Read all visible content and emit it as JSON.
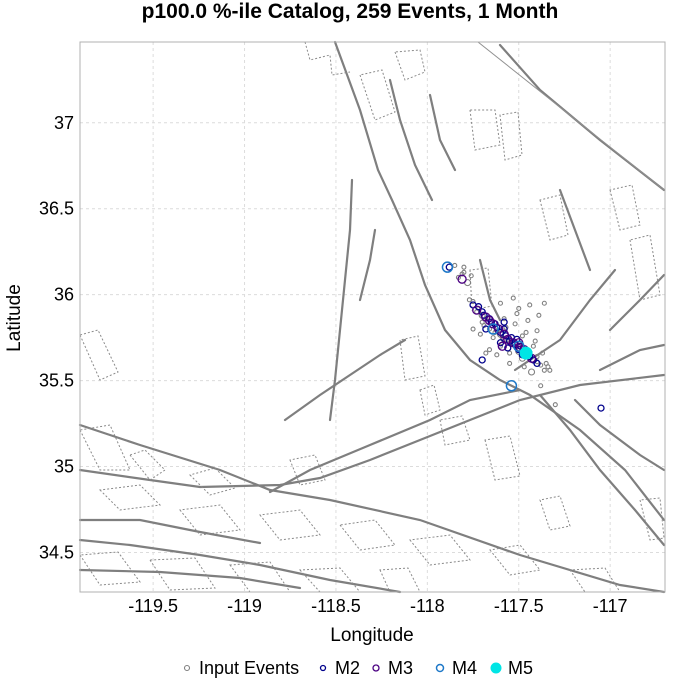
{
  "chart_data": {
    "type": "scatter",
    "title": "p100.0 %-ile Catalog, 259 Events, 1 Month",
    "xlabel": "Longitude",
    "ylabel": "Latitude",
    "xlim": [
      -119.9,
      -116.7
    ],
    "ylim": [
      34.27,
      37.47
    ],
    "xticks": [
      -119.5,
      -119,
      -118.5,
      -118,
      -117.5,
      -117
    ],
    "xtick_labels": [
      "-119.5",
      "-119",
      "-118.5",
      "-118",
      "-117.5",
      "-117"
    ],
    "yticks": [
      34.5,
      35,
      35.5,
      36,
      36.5,
      37
    ],
    "ytick_labels": [
      "34.5",
      "35",
      "35.5",
      "36",
      "36.5",
      "37"
    ],
    "grid": true,
    "legend_position": "bottom",
    "colors": {
      "input_events": "#808080",
      "m2": "#00008b",
      "m3": "#4b0082",
      "m4": "#1e78c8",
      "m5": "#00e5e5",
      "fault": "#808080",
      "grid": "#dcdcdc"
    },
    "series": [
      {
        "name": "Input Events",
        "x": [
          -117.83,
          -117.8,
          -117.78,
          -117.75,
          -117.72,
          -117.7,
          -117.68,
          -117.65,
          -117.62,
          -117.6,
          -117.58,
          -117.55,
          -117.52,
          -117.5,
          -117.48,
          -117.45,
          -117.42,
          -117.4,
          -117.38,
          -117.36,
          -117.7,
          -117.66,
          -117.63,
          -117.59,
          -117.56,
          -117.53,
          -117.5,
          -117.47,
          -117.44,
          -117.4,
          -117.58,
          -117.52,
          -117.46,
          -117.42,
          -117.55,
          -117.48,
          -117.6,
          -117.64,
          -117.69,
          -117.73,
          -117.77,
          -117.81,
          -117.5,
          -117.45,
          -117.4,
          -117.37,
          -117.35,
          -117.43,
          -117.47,
          -117.55,
          -117.62,
          -117.57,
          -117.51,
          -117.44,
          -117.39,
          -117.66,
          -117.71,
          -117.48,
          -117.41,
          -117.53,
          -117.8,
          -117.85,
          -117.76,
          -117.6,
          -117.34,
          -117.38,
          -117.33,
          -117.36,
          -117.75,
          -117.68,
          -117.3
        ],
        "y": [
          36.1,
          36.13,
          36.07,
          35.96,
          35.92,
          35.88,
          35.86,
          35.82,
          35.79,
          35.77,
          35.74,
          35.72,
          35.7,
          35.67,
          35.66,
          35.64,
          35.62,
          35.61,
          35.59,
          35.56,
          35.84,
          35.8,
          35.78,
          35.75,
          35.73,
          35.71,
          35.69,
          35.68,
          35.65,
          35.64,
          35.86,
          35.83,
          35.78,
          35.7,
          35.66,
          35.63,
          35.7,
          35.75,
          35.82,
          35.9,
          35.97,
          36.12,
          35.92,
          35.85,
          35.79,
          35.66,
          35.6,
          35.55,
          35.58,
          35.6,
          35.65,
          35.81,
          35.89,
          35.94,
          35.88,
          35.68,
          35.77,
          35.76,
          35.73,
          35.98,
          36.16,
          36.17,
          36.11,
          35.95,
          35.58,
          35.47,
          35.56,
          35.95,
          35.8,
          35.66,
          35.36
        ],
        "sizes": [
          2,
          2,
          3,
          2,
          2,
          3,
          2,
          2,
          2,
          3,
          3,
          2,
          2,
          3,
          2,
          2,
          3,
          2,
          2,
          2,
          2,
          2,
          2,
          2,
          2,
          2,
          3,
          2,
          2,
          2,
          2,
          2,
          2,
          2,
          2,
          3,
          2,
          2,
          2,
          2,
          2,
          2,
          2,
          2,
          2,
          2,
          2,
          3,
          2,
          2,
          2,
          2,
          2,
          2,
          2,
          2,
          2,
          2,
          2,
          2,
          2,
          2,
          2,
          2,
          2,
          2,
          2,
          2,
          2,
          2,
          2
        ]
      },
      {
        "name": "M2",
        "x": [
          -117.72,
          -117.7,
          -117.66,
          -117.62,
          -117.6,
          -117.57,
          -117.55,
          -117.52,
          -117.5,
          -117.47,
          -117.44,
          -117.42,
          -117.65,
          -117.58,
          -117.54,
          -117.49,
          -117.6,
          -117.46,
          -117.69,
          -117.63,
          -117.51,
          -117.48,
          -117.05,
          -117.68,
          -117.56,
          -117.88,
          -117.75,
          -117.4,
          -117.7,
          -117.58
        ],
        "y": [
          35.93,
          35.9,
          35.86,
          35.81,
          35.78,
          35.76,
          35.73,
          35.71,
          35.68,
          35.66,
          35.64,
          35.62,
          35.84,
          35.8,
          35.75,
          35.7,
          35.72,
          35.67,
          35.88,
          35.83,
          35.74,
          35.65,
          35.34,
          35.8,
          35.69,
          36.16,
          35.94,
          35.6,
          35.62,
          35.84
        ],
        "sizes": [
          3,
          3,
          3,
          3,
          3,
          3,
          3,
          3,
          3,
          3,
          3,
          3,
          3,
          3,
          3,
          3,
          3,
          3,
          3,
          3,
          3,
          3,
          3,
          3,
          3,
          3,
          3,
          3,
          3,
          3
        ]
      },
      {
        "name": "M3",
        "x": [
          -117.73,
          -117.68,
          -117.64,
          -117.61,
          -117.56,
          -117.53,
          -117.49,
          -117.45,
          -117.66,
          -117.58,
          -117.5,
          -117.47,
          -117.59,
          -117.81,
          -117.43
        ],
        "y": [
          35.91,
          35.87,
          35.83,
          35.8,
          35.74,
          35.72,
          35.69,
          35.66,
          35.85,
          35.77,
          35.72,
          35.68,
          35.7,
          36.09,
          35.63
        ],
        "sizes": [
          4,
          4,
          4,
          4,
          4,
          4,
          4,
          4,
          4,
          4,
          4,
          4,
          4,
          4,
          4
        ]
      },
      {
        "name": "M4",
        "x": [
          -117.5,
          -117.46,
          -117.64,
          -117.89,
          -117.54
        ],
        "y": [
          35.7,
          35.66,
          35.8,
          36.16,
          35.47
        ],
        "sizes": [
          5,
          5,
          5,
          5,
          5
        ]
      },
      {
        "name": "M5",
        "x": [
          -117.46
        ],
        "y": [
          35.66
        ],
        "sizes": [
          6
        ]
      }
    ]
  }
}
